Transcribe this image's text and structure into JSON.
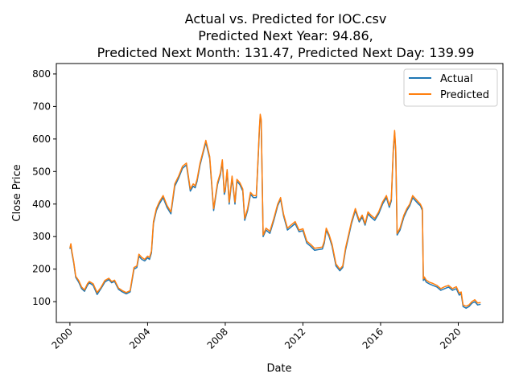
{
  "chart_data": {
    "type": "line",
    "title": "Actual vs. Predicted for IOC.csv",
    "subtitle_lines": [
      "Predicted Next Year: 94.86,",
      "Predicted Next Month: 131.47, Predicted Next Day: 139.99"
    ],
    "xlabel": "Date",
    "ylabel": "Close Price",
    "xlim": [
      1999.3,
      2022.3
    ],
    "ylim": [
      36,
      832
    ],
    "xticks": [
      2000,
      2004,
      2008,
      2012,
      2016,
      2020
    ],
    "xtick_labels": [
      "2000",
      "2004",
      "2008",
      "2012",
      "2016",
      "2020"
    ],
    "yticks": [
      100,
      200,
      300,
      400,
      500,
      600,
      700,
      800
    ],
    "ytick_labels": [
      "100",
      "200",
      "300",
      "400",
      "500",
      "600",
      "700",
      "800"
    ],
    "legend_position": "top-right",
    "grid": false,
    "series": [
      {
        "name": "Actual",
        "color": "#1f77b4",
        "x": [
          2000.0,
          2000.05,
          2000.1,
          2000.2,
          2000.3,
          2000.45,
          2000.6,
          2000.75,
          2000.9,
          2001.0,
          2001.2,
          2001.4,
          2001.6,
          2001.8,
          2002.0,
          2002.15,
          2002.3,
          2002.5,
          2002.7,
          2002.9,
          2003.1,
          2003.3,
          2003.45,
          2003.55,
          2003.7,
          2003.85,
          2004.0,
          2004.1,
          2004.2,
          2004.3,
          2004.45,
          2004.6,
          2004.8,
          2005.0,
          2005.2,
          2005.4,
          2005.6,
          2005.8,
          2006.0,
          2006.2,
          2006.35,
          2006.45,
          2006.55,
          2006.7,
          2006.85,
          2007.0,
          2007.2,
          2007.4,
          2007.6,
          2007.75,
          2007.85,
          2007.95,
          2008.0,
          2008.1,
          2008.2,
          2008.35,
          2008.5,
          2008.6,
          2008.75,
          2008.9,
          2009.0,
          2009.15,
          2009.3,
          2009.45,
          2009.6,
          2009.7,
          2009.75,
          2009.8,
          2009.85,
          2009.95,
          2010.1,
          2010.3,
          2010.5,
          2010.7,
          2010.85,
          2011.0,
          2011.2,
          2011.4,
          2011.6,
          2011.8,
          2012.0,
          2012.2,
          2012.4,
          2012.6,
          2012.8,
          2013.0,
          2013.1,
          2013.2,
          2013.35,
          2013.5,
          2013.7,
          2013.9,
          2014.05,
          2014.2,
          2014.35,
          2014.5,
          2014.7,
          2014.9,
          2015.05,
          2015.2,
          2015.35,
          2015.5,
          2015.7,
          2015.9,
          2016.1,
          2016.3,
          2016.45,
          2016.55,
          2016.65,
          2016.72,
          2016.78,
          2016.85,
          2017.0,
          2017.2,
          2017.35,
          2017.5,
          2017.65,
          2017.8,
          2017.95,
          2018.05,
          2018.15,
          2018.2,
          2018.25,
          2018.35,
          2018.5,
          2018.7,
          2018.9,
          2019.1,
          2019.3,
          2019.5,
          2019.7,
          2019.9,
          2020.05,
          2020.15,
          2020.25,
          2020.4,
          2020.55,
          2020.7,
          2020.85,
          2021.0,
          2021.15
        ],
        "values": [
          262,
          275,
          250,
          218,
          175,
          160,
          140,
          132,
          150,
          158,
          150,
          122,
          140,
          160,
          168,
          158,
          162,
          138,
          130,
          124,
          130,
          200,
          205,
          240,
          230,
          225,
          235,
          230,
          250,
          340,
          380,
          400,
          420,
          390,
          370,
          455,
          480,
          510,
          520,
          440,
          455,
          450,
          470,
          520,
          555,
          590,
          540,
          380,
          460,
          490,
          530,
          430,
          440,
          500,
          400,
          480,
          400,
          470,
          460,
          440,
          350,
          380,
          430,
          420,
          420,
          550,
          620,
          670,
          655,
          300,
          320,
          310,
          350,
          395,
          415,
          365,
          320,
          330,
          340,
          315,
          318,
          280,
          270,
          258,
          260,
          262,
          280,
          320,
          300,
          270,
          210,
          195,
          205,
          260,
          300,
          340,
          380,
          345,
          360,
          335,
          370,
          360,
          350,
          370,
          400,
          420,
          390,
          410,
          560,
          620,
          560,
          305,
          320,
          360,
          380,
          395,
          420,
          410,
          400,
          395,
          380,
          165,
          170,
          160,
          155,
          150,
          145,
          135,
          140,
          145,
          135,
          140,
          120,
          125,
          85,
          80,
          85,
          95,
          100,
          90,
          92
        ]
      },
      {
        "name": "Predicted",
        "color": "#ff7f0e",
        "x": [
          2000.0,
          2000.05,
          2000.1,
          2000.2,
          2000.3,
          2000.45,
          2000.6,
          2000.75,
          2000.9,
          2001.0,
          2001.2,
          2001.4,
          2001.6,
          2001.8,
          2002.0,
          2002.15,
          2002.3,
          2002.5,
          2002.7,
          2002.9,
          2003.1,
          2003.3,
          2003.45,
          2003.55,
          2003.7,
          2003.85,
          2004.0,
          2004.1,
          2004.2,
          2004.3,
          2004.45,
          2004.6,
          2004.8,
          2005.0,
          2005.2,
          2005.4,
          2005.6,
          2005.8,
          2006.0,
          2006.2,
          2006.35,
          2006.45,
          2006.55,
          2006.7,
          2006.85,
          2007.0,
          2007.2,
          2007.4,
          2007.6,
          2007.75,
          2007.85,
          2007.95,
          2008.0,
          2008.1,
          2008.2,
          2008.35,
          2008.5,
          2008.6,
          2008.75,
          2008.9,
          2009.0,
          2009.15,
          2009.3,
          2009.45,
          2009.6,
          2009.7,
          2009.75,
          2009.8,
          2009.85,
          2009.95,
          2010.1,
          2010.3,
          2010.5,
          2010.7,
          2010.85,
          2011.0,
          2011.2,
          2011.4,
          2011.6,
          2011.8,
          2012.0,
          2012.2,
          2012.4,
          2012.6,
          2012.8,
          2013.0,
          2013.1,
          2013.2,
          2013.35,
          2013.5,
          2013.7,
          2013.9,
          2014.05,
          2014.2,
          2014.35,
          2014.5,
          2014.7,
          2014.9,
          2015.05,
          2015.2,
          2015.35,
          2015.5,
          2015.7,
          2015.9,
          2016.1,
          2016.3,
          2016.45,
          2016.55,
          2016.65,
          2016.72,
          2016.78,
          2016.85,
          2017.0,
          2017.2,
          2017.35,
          2017.5,
          2017.65,
          2017.8,
          2017.95,
          2018.05,
          2018.15,
          2018.2,
          2018.25,
          2018.35,
          2018.5,
          2018.7,
          2018.9,
          2019.1,
          2019.3,
          2019.5,
          2019.7,
          2019.9,
          2020.05,
          2020.15,
          2020.25,
          2020.4,
          2020.55,
          2020.7,
          2020.85,
          2021.0,
          2021.15
        ],
        "values": [
          265,
          278,
          255,
          222,
          178,
          165,
          145,
          136,
          155,
          162,
          155,
          128,
          144,
          165,
          172,
          162,
          166,
          142,
          134,
          128,
          134,
          205,
          210,
          246,
          236,
          230,
          240,
          236,
          255,
          346,
          386,
          406,
          426,
          396,
          376,
          462,
          486,
          516,
          526,
          446,
          462,
          456,
          476,
          526,
          560,
          596,
          546,
          386,
          466,
          496,
          536,
          436,
          446,
          506,
          406,
          486,
          406,
          476,
          466,
          446,
          356,
          386,
          436,
          426,
          426,
          556,
          626,
          676,
          660,
          305,
          326,
          316,
          356,
          400,
          420,
          370,
          326,
          336,
          346,
          320,
          324,
          286,
          276,
          264,
          266,
          268,
          286,
          326,
          306,
          276,
          216,
          200,
          210,
          266,
          306,
          346,
          386,
          350,
          366,
          340,
          376,
          366,
          356,
          376,
          406,
          426,
          396,
          416,
          566,
          626,
          566,
          310,
          326,
          366,
          386,
          400,
          426,
          416,
          406,
          400,
          386,
          170,
          176,
          166,
          160,
          156,
          150,
          140,
          146,
          150,
          140,
          146,
          126,
          130,
          90,
          86,
          90,
          100,
          106,
          96,
          97
        ]
      }
    ]
  }
}
